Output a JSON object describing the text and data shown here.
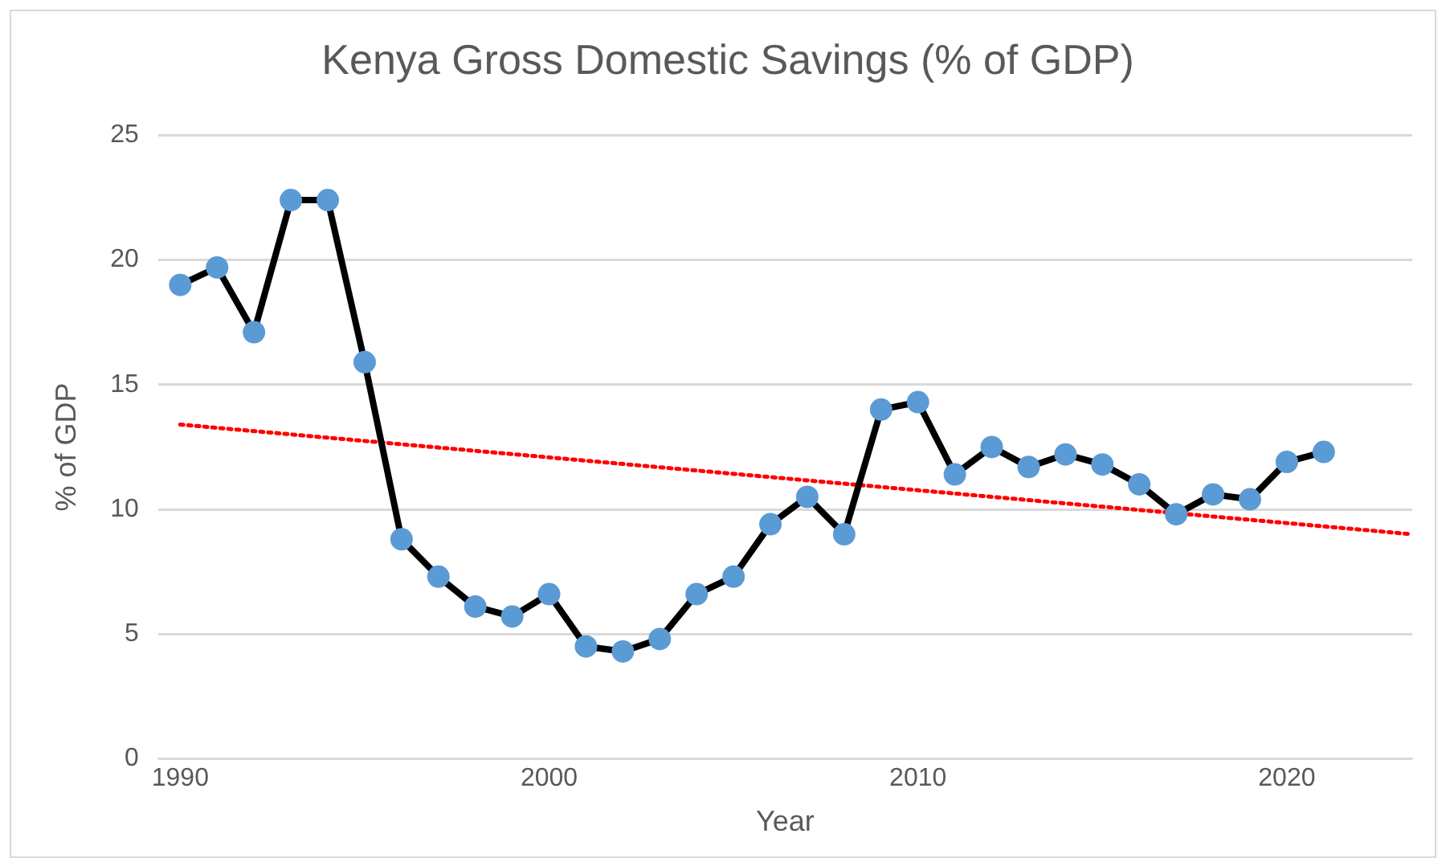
{
  "chart_data": {
    "type": "line",
    "title": "Kenya Gross Domestic Savings (% of GDP)",
    "xlabel": "Year",
    "ylabel": "% of GDP",
    "xlim": [
      1989.4,
      2023.4
    ],
    "xticks": [
      1990,
      2000,
      2010,
      2020
    ],
    "ylim": [
      0,
      25
    ],
    "yticks": [
      0,
      5,
      10,
      15,
      20,
      25
    ],
    "grid": "y",
    "legend": false,
    "series": [
      {
        "color": "#000000",
        "marker": "circle",
        "line_style": "solid",
        "x": [
          1990,
          1991,
          1992,
          1993,
          1994,
          1995,
          1996,
          1997,
          1998,
          1999,
          2000,
          2001,
          2002,
          2003,
          2004,
          2005,
          2006,
          2007,
          2008,
          2009,
          2010,
          2011,
          2012,
          2013,
          2014,
          2015,
          2016,
          2017,
          2018,
          2019,
          2020,
          2021
        ],
        "values": [
          19.0,
          19.7,
          17.1,
          22.4,
          22.4,
          15.9,
          8.8,
          7.3,
          6.1,
          5.7,
          6.6,
          4.5,
          4.3,
          4.8,
          6.6,
          7.3,
          9.4,
          10.5,
          9.0,
          14.0,
          14.3,
          11.4,
          12.5,
          11.7,
          12.2,
          11.8,
          11.0,
          9.8,
          10.6,
          10.4,
          11.9,
          12.3
        ],
        "colors": [
          "#5b9bd5",
          "#5b9bd5",
          "#5b9bd5",
          "#5b9bd5",
          "#5b9bd5",
          "#5b9bd5",
          "#5b9bd5",
          "#5b9bd5",
          "#5b9bd5",
          "#5b9bd5",
          "#5b9bd5",
          "#5b9bd5",
          "#5b9bd5",
          "#5b9bd5",
          "#5b9bd5",
          "#5b9bd5",
          "#5b9bd5",
          "#5b9bd5",
          "#5b9bd5",
          "#5b9bd5",
          "#5b9bd5",
          "#5b9bd5",
          "#5b9bd5",
          "#5b9bd5",
          "#5b9bd5",
          "#5b9bd5",
          "#5b9bd5",
          "#5b9bd5",
          "#5b9bd5",
          "#5b9bd5",
          "#5b9bd5",
          "#5b9bd5"
        ]
      },
      {
        "color": "#ff0000",
        "marker": "none",
        "line_style": "dotted",
        "x": [
          1990,
          2023.4
        ],
        "values": [
          13.4,
          9.0
        ]
      }
    ]
  }
}
